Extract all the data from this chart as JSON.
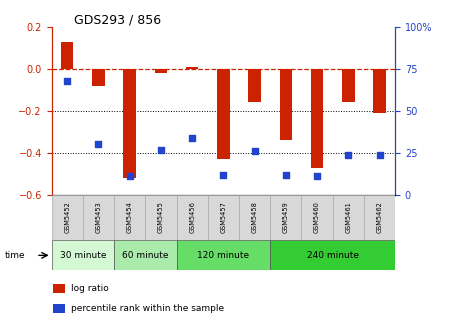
{
  "title": "GDS293 / 856",
  "samples": [
    "GSM5452",
    "GSM5453",
    "GSM5454",
    "GSM5455",
    "GSM5456",
    "GSM5457",
    "GSM5458",
    "GSM5459",
    "GSM5460",
    "GSM5461",
    "GSM5462"
  ],
  "log_ratio": [
    0.13,
    -0.08,
    -0.52,
    -0.02,
    0.01,
    -0.43,
    -0.16,
    -0.34,
    -0.47,
    -0.16,
    -0.21
  ],
  "percentile_rank": [
    68,
    30,
    11,
    27,
    34,
    12,
    26,
    12,
    11,
    24,
    24
  ],
  "bar_color": "#cc2200",
  "dot_color": "#2244cc",
  "ylim_left": [
    -0.6,
    0.2
  ],
  "ylim_right": [
    0,
    100
  ],
  "yticks_left": [
    -0.6,
    -0.4,
    -0.2,
    0.0,
    0.2
  ],
  "yticks_right": [
    0,
    25,
    50,
    75,
    100
  ],
  "ytick_right_labels": [
    "0",
    "25",
    "50",
    "75",
    "100%"
  ],
  "dotted_lines": [
    -0.4,
    -0.2
  ],
  "dashed_zero_color": "#cc2200",
  "group_labels": [
    "30 minute",
    "60 minute",
    "120 minute",
    "240 minute"
  ],
  "group_starts": [
    0,
    2,
    4,
    7
  ],
  "group_ends": [
    1,
    3,
    6,
    10
  ],
  "group_colors": [
    "#d4f7d4",
    "#aaeaaa",
    "#66dd66",
    "#33cc33"
  ],
  "time_label": "time",
  "legend_log_ratio": "log ratio",
  "legend_percentile": "percentile rank within the sample",
  "sample_bg": "#d8d8d8",
  "sample_edge": "#aaaaaa"
}
